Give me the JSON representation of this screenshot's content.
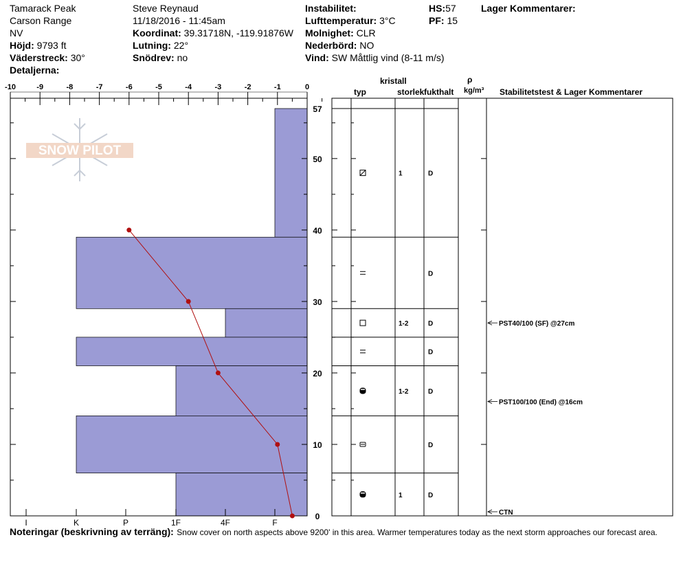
{
  "header": {
    "location": "Tamarack Peak",
    "range": "Carson Range",
    "state": "NV",
    "elevation_label": "Höjd:",
    "elevation_value": "9793 ft",
    "aspect_label": "Väderstreck:",
    "aspect_value": "30°",
    "details_label": "Detaljerna:",
    "observer": "Steve Reynaud",
    "datetime": "11/18/2016 - 11:45am",
    "coord_label": "Koordinat:",
    "coord_value": "39.31718N, -119.91876W",
    "slope_label": "Lutning:",
    "slope_value": "22°",
    "drift_label": "Snödrev:",
    "drift_value": "no",
    "instability_label": "Instabilitet:",
    "airtemp_label": "Lufttemperatur:",
    "airtemp_value": "3°C",
    "sky_label": "Molnighet:",
    "sky_value": "CLR",
    "precip_label": "Nederbörd:",
    "precip_value": "NO",
    "wind_label": "Vind:",
    "wind_value": "SW  Måttlig vind (8-11 m/s)",
    "hs_label": "HS:",
    "hs_value": "57",
    "pf_label": "PF:",
    "pf_value": "15",
    "layer_comments_label": "Lager Kommentarer:"
  },
  "columns": {
    "crystal": "kristall",
    "type": "typ",
    "size": "storlek",
    "moisture": "fukthalt",
    "rho": "ρ",
    "density_unit": "kg/m³",
    "stability": "Stabilitetstest & Lager Kommentarer"
  },
  "logo_text": "SNOW PILOT",
  "notes": {
    "label": "Noteringar (beskrivning av terräng):",
    "text": "Snow cover on north aspects above 9200' in this area.  Warmer temperatures today as the next storm approaches our forecast area."
  },
  "colors": {
    "hardness_fill": "#9b9bd5",
    "temp_line": "#b01010"
  },
  "chart_data": {
    "type": "bar",
    "temperature_axis": {
      "label": "",
      "ticks": [
        -10,
        -9,
        -8,
        -7,
        -6,
        -5,
        -4,
        -3,
        -2,
        -1,
        0
      ],
      "range": [
        -10,
        0
      ]
    },
    "hardness_axis": {
      "ticks": [
        "I",
        "K",
        "P",
        "1F",
        "4F",
        "F"
      ]
    },
    "height_axis": {
      "ticks": [
        0,
        10,
        20,
        30,
        40,
        50,
        57
      ],
      "range": [
        0,
        57
      ]
    },
    "hardness_layers": [
      {
        "top": 57,
        "bottom": 39,
        "hardness": "F"
      },
      {
        "top": 39,
        "bottom": 29,
        "hardness": "K-"
      },
      {
        "top": 29,
        "bottom": 25,
        "hardness": "4F+"
      },
      {
        "top": 25,
        "bottom": 21,
        "hardness": "K-"
      },
      {
        "top": 21,
        "bottom": 14,
        "hardness": "1F"
      },
      {
        "top": 14,
        "bottom": 6,
        "hardness": "K-"
      },
      {
        "top": 6,
        "bottom": 0,
        "hardness": "1F"
      }
    ],
    "temperature_profile": [
      {
        "height": 40,
        "temp": -6
      },
      {
        "height": 30,
        "temp": -4
      },
      {
        "height": 20,
        "temp": -3
      },
      {
        "height": 10,
        "temp": -1
      },
      {
        "height": 0,
        "temp": -0.5
      }
    ],
    "layers_table": [
      {
        "top": 57,
        "bottom": 39,
        "type_icon": "faceted-rounded",
        "size": "1",
        "moisture": "D"
      },
      {
        "top": 39,
        "bottom": 29,
        "type_icon": "surface-hoar",
        "size": "",
        "moisture": "D"
      },
      {
        "top": 29,
        "bottom": 25,
        "type_icon": "faceted",
        "size": "1-2",
        "moisture": "D"
      },
      {
        "top": 25,
        "bottom": 21,
        "type_icon": "surface-hoar",
        "size": "",
        "moisture": "D"
      },
      {
        "top": 21,
        "bottom": 14,
        "type_icon": "rounded-faceted",
        "size": "1-2",
        "moisture": "D"
      },
      {
        "top": 14,
        "bottom": 6,
        "type_icon": "rounded",
        "size": "",
        "moisture": "D"
      },
      {
        "top": 6,
        "bottom": 0,
        "type_icon": "rounded-faceted",
        "size": "1",
        "moisture": "D"
      }
    ],
    "stability_tests": [
      {
        "height": 27,
        "text": "PST40/100 (SF) @27cm"
      },
      {
        "height": 16,
        "text": "PST100/100 (End) @16cm"
      },
      {
        "height": 0,
        "text": "CTN"
      }
    ]
  }
}
